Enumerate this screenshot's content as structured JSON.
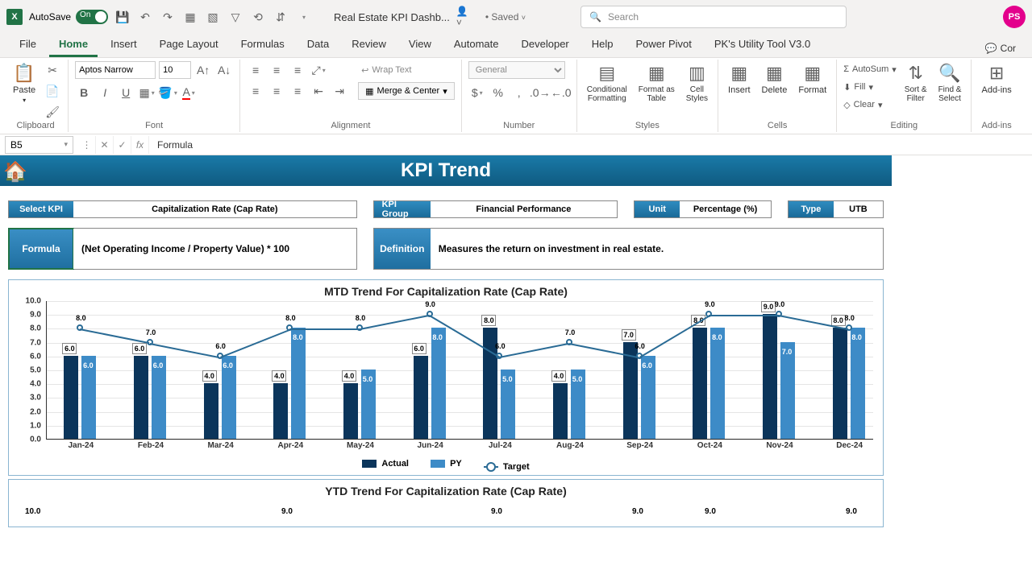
{
  "titlebar": {
    "autosave_label": "AutoSave",
    "autosave_state": "On",
    "doc_title": "Real Estate KPI Dashb...",
    "save_status": "• Saved",
    "search_placeholder": "Search",
    "user_initials": "PS"
  },
  "ribbon_tabs": [
    "File",
    "Home",
    "Insert",
    "Page Layout",
    "Formulas",
    "Data",
    "Review",
    "View",
    "Automate",
    "Developer",
    "Help",
    "Power Pivot",
    "PK's Utility Tool V3.0"
  ],
  "comments_label": "Cor",
  "ribbon": {
    "clipboard": {
      "label": "Clipboard",
      "paste": "Paste"
    },
    "font": {
      "label": "Font",
      "family": "Aptos Narrow",
      "size": "10"
    },
    "alignment": {
      "label": "Alignment",
      "wrap": "Wrap Text",
      "merge": "Merge & Center"
    },
    "number": {
      "label": "Number",
      "format": "General"
    },
    "styles": {
      "label": "Styles",
      "cond": "Conditional\nFormatting",
      "table": "Format as\nTable",
      "cell": "Cell\nStyles"
    },
    "cells": {
      "label": "Cells",
      "insert": "Insert",
      "delete": "Delete",
      "format": "Format"
    },
    "editing": {
      "label": "Editing",
      "autosum": "AutoSum",
      "fill": "Fill",
      "clear": "Clear",
      "sort": "Sort &\nFilter",
      "find": "Find &\nSelect"
    },
    "addins": {
      "label": "Add-ins",
      "btn": "Add-ins"
    }
  },
  "formula_bar": {
    "cell": "B5",
    "content": "Formula"
  },
  "dashboard": {
    "title": "KPI Trend",
    "select_kpi": {
      "label": "Select KPI",
      "value": "Capitalization Rate (Cap Rate)"
    },
    "kpi_group": {
      "label": "KPI Group",
      "value": "Financial Performance"
    },
    "unit": {
      "label": "Unit",
      "value": "Percentage (%)"
    },
    "type": {
      "label": "Type",
      "value": "UTB"
    },
    "formula": {
      "label": "Formula",
      "value": "(Net Operating Income / Property Value) * 100"
    },
    "definition": {
      "label": "Definition",
      "value": "Measures the return on investment in real estate."
    }
  },
  "mtd_chart": {
    "title": "MTD Trend For Capitalization Rate (Cap Rate)",
    "ymin": 0,
    "ymax": 10,
    "ystep": 1,
    "categories": [
      "Jan-24",
      "Feb-24",
      "Mar-24",
      "Apr-24",
      "May-24",
      "Jun-24",
      "Jul-24",
      "Aug-24",
      "Sep-24",
      "Oct-24",
      "Nov-24",
      "Dec-24"
    ],
    "actual": [
      6.0,
      6.0,
      4.0,
      4.0,
      4.0,
      6.0,
      8.0,
      4.0,
      7.0,
      8.0,
      9.0,
      8.0
    ],
    "py": [
      6.0,
      6.0,
      6.0,
      8.0,
      5.0,
      8.0,
      5.0,
      5.0,
      6.0,
      8.0,
      7.0,
      8.0
    ],
    "target": [
      8.0,
      7.0,
      6.0,
      8.0,
      8.0,
      9.0,
      6.0,
      7.0,
      6.0,
      9.0,
      9.0,
      8.0
    ],
    "target_label": [
      "8.0",
      "7.0",
      "6.0",
      "8.0",
      "8.0",
      "9.0",
      "6.0",
      "7.0",
      "6.0",
      "9.0",
      "9.0",
      "8.0"
    ],
    "colors": {
      "actual": "#0b355b",
      "py": "#3d8bc7",
      "target": "#2a6b95",
      "grid": "#e5e5e5"
    },
    "legend": {
      "actual": "Actual",
      "py": "PY",
      "target": "Target"
    }
  },
  "ytd_chart": {
    "title": "YTD Trend For Capitalization Rate (Cap Rate)",
    "ymax_label": "10.0",
    "visible_targets": [
      "9.0",
      "9.0",
      "9.0",
      "9.0",
      "9.0"
    ],
    "grid_color": "#e5e5e5"
  }
}
